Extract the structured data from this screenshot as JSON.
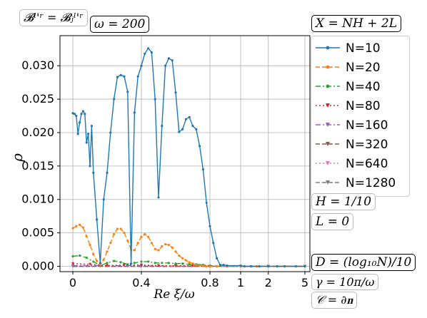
{
  "annotations": {
    "basis": "𝓑ˡ'ʳ = 𝓑ⱼˡ'ʳ",
    "omega": "ω = 200",
    "x_def": "X = NH + 2L",
    "h_def": "H = 1/10",
    "l_def": "L = 0",
    "d_def": "D = (log₁₀N)/10",
    "gamma_def": "γ = 10π/ω",
    "c_def": "𝒞 = ∂𝐧"
  },
  "chart_data": {
    "type": "line",
    "xlabel": "Re ξ/ω",
    "ylabel": "ρ",
    "x_axis_scale": "linear on [0, 0.9] then logarithmic on [1, 5]",
    "xticks": [
      {
        "value": 0,
        "label": "0"
      },
      {
        "value": 0.4,
        "label": "0.4"
      },
      {
        "value": 0.8,
        "label": "0.8"
      },
      {
        "value": 1,
        "label": "1"
      },
      {
        "value": 2,
        "label": "2"
      },
      {
        "value": 5,
        "label": "5"
      }
    ],
    "yticks": [
      0,
      0.005,
      0.01,
      0.015,
      0.02,
      0.025,
      0.03
    ],
    "ytick_labels": [
      "0.000",
      "0.005",
      "0.010",
      "0.015",
      "0.020",
      "0.025",
      "0.030"
    ],
    "ylim": [
      -0.0008,
      0.0345
    ],
    "grid": true,
    "legend_position": "right",
    "series": [
      {
        "name": "N=10",
        "color": "#1f77b4",
        "linestyle": "solid",
        "marker": "dot",
        "x": [
          0.0,
          0.01,
          0.02,
          0.03,
          0.04,
          0.05,
          0.06,
          0.07,
          0.08,
          0.09,
          0.1,
          0.11,
          0.12,
          0.14,
          0.16,
          0.18,
          0.2,
          0.22,
          0.24,
          0.26,
          0.28,
          0.3,
          0.32,
          0.34,
          0.36,
          0.38,
          0.4,
          0.42,
          0.44,
          0.46,
          0.48,
          0.5,
          0.52,
          0.54,
          0.56,
          0.58,
          0.6,
          0.62,
          0.64,
          0.66,
          0.68,
          0.7,
          0.72,
          0.74,
          0.76,
          0.78,
          0.8,
          0.82,
          0.84,
          0.86,
          0.88,
          0.9,
          1.0,
          1.1,
          1.3,
          1.6,
          2.0,
          2.5,
          3.0,
          4.0,
          5.0
        ],
        "y": [
          0.0229,
          0.0228,
          0.0225,
          0.0198,
          0.0215,
          0.0228,
          0.0232,
          0.0228,
          0.0185,
          0.0198,
          0.015,
          0.021,
          0.014,
          0.007,
          0.0005,
          0.01,
          0.014,
          0.02,
          0.025,
          0.0283,
          0.0286,
          0.0284,
          0.0261,
          0.0004,
          0.023,
          0.0284,
          0.03,
          0.0318,
          0.0326,
          0.032,
          0.025,
          0.0103,
          0.021,
          0.03,
          0.0311,
          0.0308,
          0.026,
          0.0201,
          0.0205,
          0.022,
          0.0223,
          0.021,
          0.0205,
          0.018,
          0.0145,
          0.0095,
          0.006,
          0.0035,
          0.0012,
          0.0002,
          0.0002,
          0.0001,
          0.0001,
          0.0,
          0.0,
          0.0,
          0.0,
          0.0,
          0.0,
          0.0,
          0.0
        ]
      },
      {
        "name": "N=20",
        "color": "#ff7f0e",
        "linestyle": "dashed",
        "marker": "dot",
        "x": [
          0.0,
          0.02,
          0.04,
          0.06,
          0.08,
          0.1,
          0.12,
          0.14,
          0.16,
          0.18,
          0.2,
          0.22,
          0.24,
          0.26,
          0.28,
          0.3,
          0.32,
          0.34,
          0.36,
          0.38,
          0.4,
          0.42,
          0.44,
          0.46,
          0.48,
          0.5,
          0.52,
          0.54,
          0.56,
          0.58,
          0.6,
          0.62,
          0.64,
          0.66,
          0.68,
          0.7,
          0.72,
          0.74,
          0.76,
          0.78,
          0.8,
          0.84,
          0.9,
          1.0,
          1.5,
          2.0,
          3.0,
          5.0
        ],
        "y": [
          0.0057,
          0.006,
          0.0062,
          0.0058,
          0.0045,
          0.0032,
          0.0018,
          0.0008,
          0.0002,
          0.001,
          0.0022,
          0.0035,
          0.0048,
          0.0056,
          0.0056,
          0.005,
          0.0038,
          0.0025,
          0.0024,
          0.0035,
          0.0044,
          0.0048,
          0.0044,
          0.0035,
          0.0026,
          0.0024,
          0.003,
          0.0033,
          0.0032,
          0.0028,
          0.0022,
          0.0016,
          0.0012,
          0.0009,
          0.0006,
          0.0004,
          0.0002,
          0.0001,
          0.0001,
          0.0,
          0.0,
          0.0,
          0.0,
          0.0,
          0.0,
          0.0,
          0.0,
          0.0
        ]
      },
      {
        "name": "N=40",
        "color": "#2ca02c",
        "linestyle": "dashdot",
        "marker": "dot",
        "x": [
          0.0,
          0.04,
          0.08,
          0.12,
          0.16,
          0.2,
          0.24,
          0.28,
          0.32,
          0.36,
          0.4,
          0.44,
          0.48,
          0.52,
          0.56,
          0.6,
          0.64,
          0.68,
          0.72,
          0.76,
          0.8,
          0.9,
          1.0,
          2.0,
          5.0
        ],
        "y": [
          0.0015,
          0.0016,
          0.0013,
          0.0007,
          0.0001,
          0.0005,
          0.0008,
          0.0006,
          0.0003,
          0.0005,
          0.0007,
          0.0007,
          0.0005,
          0.0005,
          0.0005,
          0.0004,
          0.0004,
          0.0003,
          0.0003,
          0.0002,
          0.0001,
          0.0,
          0.0,
          0.0,
          0.0
        ]
      },
      {
        "name": "N=80",
        "color": "#d62728",
        "linestyle": "dotted",
        "marker": "triangle",
        "x": [
          0.0,
          0.1,
          0.2,
          0.3,
          0.4,
          0.5,
          0.6,
          0.7,
          0.8,
          0.9,
          1.0,
          2.0,
          5.0
        ],
        "y": [
          0.0004,
          0.0003,
          0.0001,
          0.0002,
          0.0002,
          0.0001,
          0.0001,
          0.0001,
          0.0,
          0.0,
          0.0,
          0.0,
          0.0
        ]
      },
      {
        "name": "N=160",
        "color": "#9467bd",
        "linestyle": "dashdot",
        "marker": "triangle",
        "x": [
          0.0,
          0.2,
          0.4,
          0.6,
          0.8,
          1.0,
          2.0,
          5.0
        ],
        "y": [
          0.0001,
          0.0001,
          0.0001,
          0.0,
          0.0,
          0.0,
          0.0,
          0.0
        ]
      },
      {
        "name": "N=320",
        "color": "#8c564b",
        "linestyle": "dashed",
        "marker": "triangle",
        "x": [
          0.0,
          0.4,
          0.8,
          1.0,
          2.0,
          5.0
        ],
        "y": [
          0.0,
          0.0,
          0.0,
          0.0,
          0.0,
          0.0
        ]
      },
      {
        "name": "N=640",
        "color": "#e377c2",
        "linestyle": "dotted",
        "marker": "triangle",
        "x": [
          0.0,
          0.4,
          0.8,
          1.0,
          2.0,
          5.0
        ],
        "y": [
          0.0,
          0.0,
          0.0,
          0.0,
          0.0,
          0.0
        ]
      },
      {
        "name": "N=1280",
        "color": "#7f7f7f",
        "linestyle": "dashed",
        "marker": "triangle",
        "x": [
          0.0,
          0.4,
          0.8,
          1.0,
          2.0,
          5.0
        ],
        "y": [
          0.0,
          0.0,
          0.0,
          0.0,
          0.0,
          0.0
        ]
      }
    ]
  }
}
